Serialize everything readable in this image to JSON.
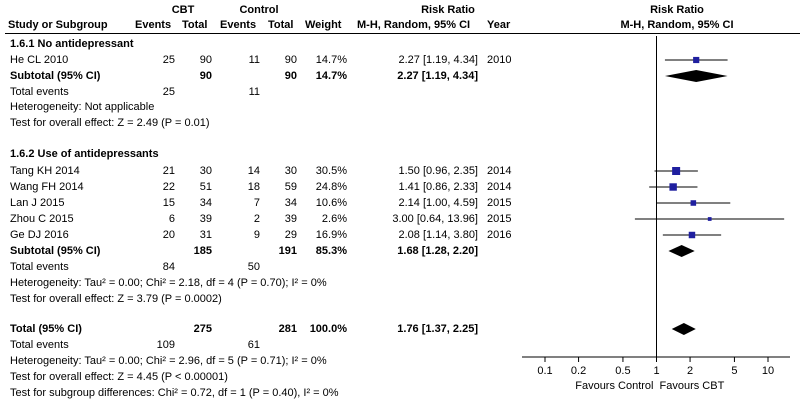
{
  "header": {
    "group1": "CBT",
    "group2": "Control",
    "study_col": "Study or Subgroup",
    "events": "Events",
    "total": "Total",
    "weight": "Weight",
    "rr_title": "Risk Ratio",
    "rr_method": "M-H, Random, 95% CI",
    "year": "Year"
  },
  "subgroups": [
    {
      "title": "1.6.1 No antidepressant",
      "studies": [
        {
          "name": "He CL 2010",
          "e1": "25",
          "n1": "90",
          "e2": "11",
          "n2": "90",
          "weight": "14.7%",
          "rr_text": "2.27 [1.19, 4.34]",
          "year": "2010"
        }
      ],
      "subtotal": {
        "label": "Subtotal (95% CI)",
        "n1": "90",
        "n2": "90",
        "weight": "14.7%",
        "rr_text": "2.27 [1.19, 4.34]"
      },
      "total_events": {
        "label": "Total events",
        "e1": "25",
        "e2": "11"
      },
      "heterogeneity": "Heterogeneity: Not applicable",
      "overall_effect": "Test for overall effect: Z = 2.49 (P = 0.01)"
    },
    {
      "title": "1.6.2 Use of antidepressants",
      "studies": [
        {
          "name": "Tang KH 2014",
          "e1": "21",
          "n1": "30",
          "e2": "14",
          "n2": "30",
          "weight": "30.5%",
          "rr_text": "1.50 [0.96, 2.35]",
          "year": "2014"
        },
        {
          "name": "Wang FH 2014",
          "e1": "22",
          "n1": "51",
          "e2": "18",
          "n2": "59",
          "weight": "24.8%",
          "rr_text": "1.41 [0.86, 2.33]",
          "year": "2014"
        },
        {
          "name": "Lan J 2015",
          "e1": "15",
          "n1": "34",
          "e2": "7",
          "n2": "34",
          "weight": "10.6%",
          "rr_text": "2.14 [1.00, 4.59]",
          "year": "2015"
        },
        {
          "name": "Zhou C 2015",
          "e1": "6",
          "n1": "39",
          "e2": "2",
          "n2": "39",
          "weight": "2.6%",
          "rr_text": "3.00 [0.64, 13.96]",
          "year": "2015"
        },
        {
          "name": "Ge DJ 2016",
          "e1": "20",
          "n1": "31",
          "e2": "9",
          "n2": "29",
          "weight": "16.9%",
          "rr_text": "2.08 [1.14, 3.80]",
          "year": "2016"
        }
      ],
      "subtotal": {
        "label": "Subtotal (95% CI)",
        "n1": "185",
        "n2": "191",
        "weight": "85.3%",
        "rr_text": "1.68 [1.28, 2.20]"
      },
      "total_events": {
        "label": "Total events",
        "e1": "84",
        "e2": "50"
      },
      "heterogeneity": "Heterogeneity: Tau² = 0.00; Chi² = 2.18, df = 4 (P = 0.70); I² = 0%",
      "overall_effect": "Test for overall effect: Z = 3.79 (P = 0.0002)"
    }
  ],
  "total": {
    "label": "Total (95% CI)",
    "n1": "275",
    "n2": "281",
    "weight": "100.0%",
    "rr_text": "1.76 [1.37, 2.25]",
    "events_label": "Total events",
    "e1": "109",
    "e2": "61",
    "heterogeneity": "Heterogeneity: Tau² = 0.00; Chi² = 2.96, df = 5 (P = 0.71); I² = 0%",
    "overall_effect": "Test for overall effect: Z = 4.45 (P < 0.00001)",
    "subgroup_diff": "Test for subgroup differences: Chi² = 0.72, df = 1 (P = 0.40), I² = 0%"
  },
  "axis_labels": {
    "left": "Favours Control",
    "right": "Favours CBT"
  },
  "colors": {
    "marker": "#1f1f9f",
    "diamond": "#000000",
    "text": "#000000"
  },
  "chart_data": {
    "type": "forest",
    "title": "Risk Ratio",
    "subtitle": "M-H, Random, 95% CI",
    "scale": "log",
    "xlim": [
      0.1,
      10
    ],
    "ticks": [
      0.1,
      0.2,
      0.5,
      1,
      2,
      5,
      10
    ],
    "tick_labels": [
      "0.1",
      "0.2",
      "0.5",
      "1",
      "2",
      "5",
      "10"
    ],
    "null_value": 1,
    "studies": [
      {
        "name": "He CL 2010",
        "rr": 2.27,
        "lo": 1.19,
        "hi": 4.34,
        "weight": 14.7
      },
      {
        "name": "Tang KH 2014",
        "rr": 1.5,
        "lo": 0.96,
        "hi": 2.35,
        "weight": 30.5
      },
      {
        "name": "Wang FH 2014",
        "rr": 1.41,
        "lo": 0.86,
        "hi": 2.33,
        "weight": 24.8
      },
      {
        "name": "Lan J 2015",
        "rr": 2.14,
        "lo": 1.0,
        "hi": 4.59,
        "weight": 10.6
      },
      {
        "name": "Zhou C 2015",
        "rr": 3.0,
        "lo": 0.64,
        "hi": 13.96,
        "weight": 2.6
      },
      {
        "name": "Ge DJ 2016",
        "rr": 2.08,
        "lo": 1.14,
        "hi": 3.8,
        "weight": 16.9
      }
    ],
    "summaries": [
      {
        "name": "Subtotal 1.6.1",
        "rr": 2.27,
        "lo": 1.19,
        "hi": 4.34
      },
      {
        "name": "Subtotal 1.6.2",
        "rr": 1.68,
        "lo": 1.28,
        "hi": 2.2
      },
      {
        "name": "Total",
        "rr": 1.76,
        "lo": 1.37,
        "hi": 2.25
      }
    ],
    "xlabel_left": "Favours Control",
    "xlabel_right": "Favours CBT"
  }
}
